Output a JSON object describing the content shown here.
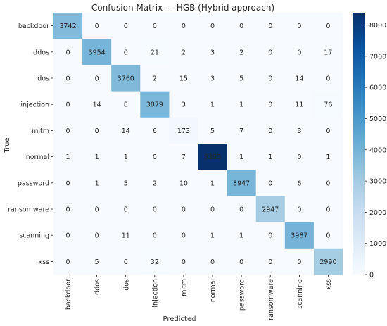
{
  "chart_data": {
    "type": "heatmap",
    "title": "Confusion Matrix — HGB (Hybrid approach)",
    "xlabel": "Predicted",
    "ylabel": "True",
    "x_categories": [
      "backdoor",
      "ddos",
      "dos",
      "injection",
      "mitm",
      "normal",
      "password",
      "ransomware",
      "scanning",
      "xss"
    ],
    "y_categories": [
      "backdoor",
      "ddos",
      "dos",
      "injection",
      "mitm",
      "normal",
      "password",
      "ransomware",
      "scanning",
      "xss"
    ],
    "values": [
      [
        3742,
        0,
        0,
        0,
        0,
        0,
        0,
        0,
        0,
        0
      ],
      [
        0,
        3954,
        0,
        21,
        2,
        3,
        2,
        0,
        0,
        17
      ],
      [
        0,
        0,
        3760,
        2,
        15,
        3,
        5,
        0,
        14,
        0
      ],
      [
        0,
        14,
        8,
        3879,
        3,
        1,
        1,
        0,
        11,
        76
      ],
      [
        0,
        0,
        14,
        6,
        173,
        5,
        7,
        0,
        3,
        0
      ],
      [
        1,
        1,
        1,
        0,
        7,
        8395,
        1,
        1,
        0,
        1
      ],
      [
        0,
        1,
        5,
        2,
        10,
        1,
        3947,
        0,
        6,
        0
      ],
      [
        0,
        0,
        0,
        0,
        0,
        0,
        0,
        2947,
        0,
        0
      ],
      [
        0,
        0,
        11,
        0,
        0,
        1,
        1,
        0,
        3987,
        0
      ],
      [
        0,
        5,
        0,
        32,
        0,
        0,
        0,
        0,
        0,
        2990
      ]
    ],
    "colorscale": "Blues",
    "vmin": 0,
    "vmax": 8395,
    "colorbar_ticks": [
      0,
      1000,
      2000,
      3000,
      4000,
      5000,
      6000,
      7000,
      8000
    ]
  }
}
